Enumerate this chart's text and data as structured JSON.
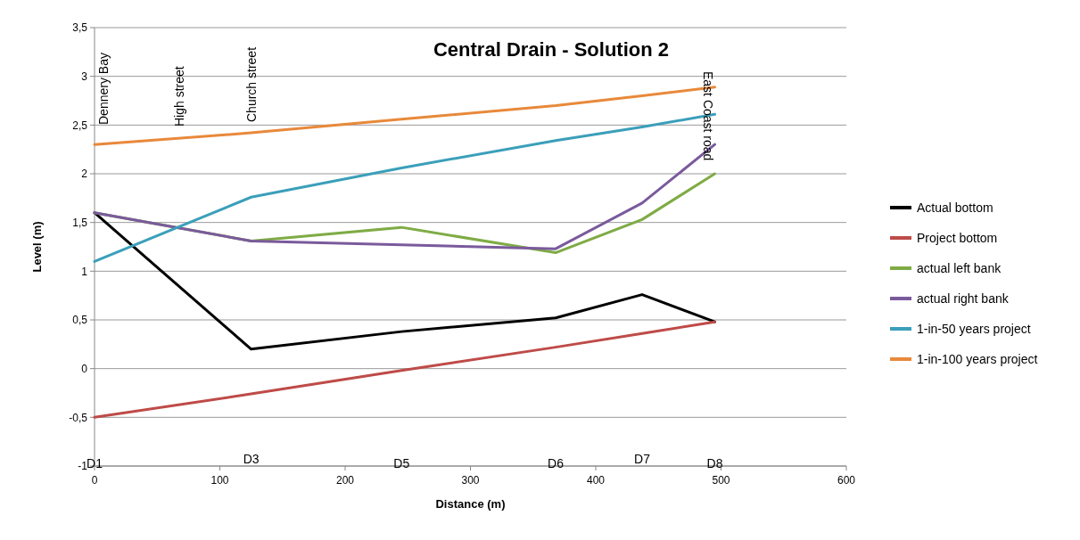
{
  "chart_data": {
    "type": "line",
    "title": "Central Drain - Solution 2",
    "xlabel": "Distance (m)",
    "ylabel": "Level (m)",
    "x": [
      0,
      125,
      245,
      368,
      437,
      495
    ],
    "series": [
      {
        "name": "Actual bottom",
        "color": "#000000",
        "values": [
          1.6,
          0.2,
          0.38,
          0.52,
          0.76,
          0.48
        ]
      },
      {
        "name": "Project bottom",
        "color": "#be4b48",
        "values": [
          -0.5,
          -0.26,
          -0.02,
          0.22,
          0.36,
          0.48
        ]
      },
      {
        "name": "actual left bank",
        "color": "#7fab45",
        "values": [
          1.6,
          1.31,
          1.45,
          1.19,
          1.53,
          2.0
        ]
      },
      {
        "name": "actual right bank",
        "color": "#7a5a9c",
        "values": [
          1.6,
          1.31,
          1.27,
          1.23,
          1.7,
          2.3
        ]
      },
      {
        "name": "1-in-50 years project",
        "color": "#3b9fba",
        "values": [
          1.1,
          1.76,
          2.06,
          2.34,
          2.48,
          2.61
        ]
      },
      {
        "name": "1-in-100 years project",
        "color": "#e8893a",
        "values": [
          2.3,
          2.42,
          2.56,
          2.7,
          2.8,
          2.89
        ]
      }
    ],
    "xlim": [
      0,
      600
    ],
    "xticks": [
      0,
      100,
      200,
      300,
      400,
      500,
      600
    ],
    "ylim": [
      -1,
      3.5
    ],
    "yticks": [
      {
        "value": -1,
        "label": "-1"
      },
      {
        "value": -0.5,
        "label": "-0,5"
      },
      {
        "value": 0,
        "label": "0"
      },
      {
        "value": 0.5,
        "label": "0,5"
      },
      {
        "value": 1,
        "label": "1"
      },
      {
        "value": 1.5,
        "label": "1,5"
      },
      {
        "value": 2,
        "label": "2"
      },
      {
        "value": 2.5,
        "label": "2,5"
      },
      {
        "value": 3,
        "label": "3"
      },
      {
        "value": 3.5,
        "label": "3,5"
      }
    ],
    "grid": "y",
    "legend": "right",
    "marker": "none",
    "line_style": "solid",
    "annotations": [
      "Dennery Bay",
      "High street",
      "Church street",
      "East Coast road",
      "D1",
      "D3",
      "D5",
      "D6",
      "D7",
      "D8"
    ]
  }
}
